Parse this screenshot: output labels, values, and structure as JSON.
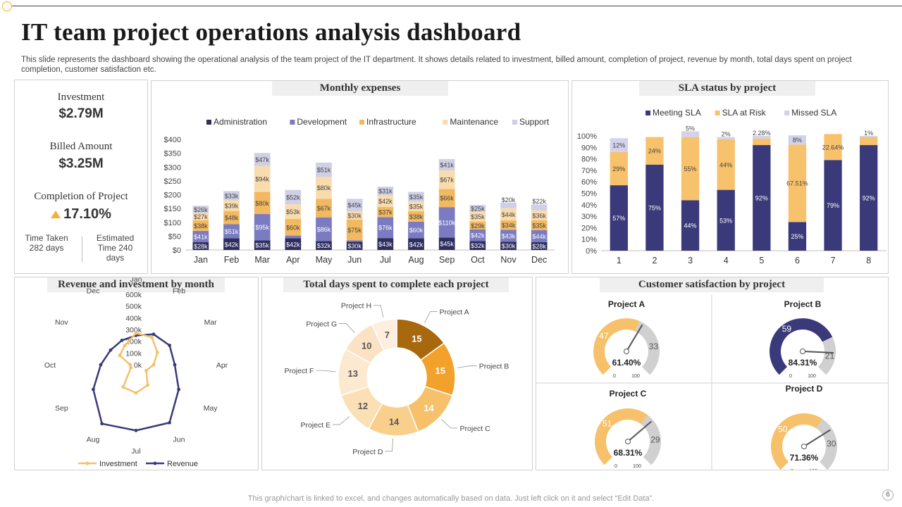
{
  "page": {
    "title": "IT team project operations analysis dashboard",
    "description": "This slide represents the dashboard showing the operational analysis of the team project of the IT department. It shows details related to investment, billed amount, completion of project, revenue by month, total days spent on project completion, customer satisfaction etc.",
    "footer": "This graph/chart is linked to excel,  and changes automatically based on data. Just left click on it and select “Edit Data”.",
    "page_number": "6"
  },
  "kpis": {
    "investment_label": "Investment",
    "investment_value": "$2.79M",
    "billed_label": "Billed  Amount",
    "billed_value": "$3.25M",
    "completion_label": "Completion  of Project",
    "completion_value": "17.10%",
    "time_taken": "Time Taken 282 days",
    "estimated_time": "Estimated Time 240 days",
    "up_color": "#f2b233"
  },
  "chart_data": [
    {
      "id": "monthly-expenses",
      "type": "bar",
      "stacked": true,
      "title": "Monthly expenses",
      "categories": [
        "Jan",
        "Feb",
        "Mar",
        "Apr",
        "May",
        "Jun",
        "Jul",
        "Aug",
        "Sep",
        "Oct",
        "Nov",
        "Dec"
      ],
      "y_ticks": [
        "$0",
        "$50",
        "$100",
        "$150",
        "$200",
        "$250",
        "$300",
        "$350",
        "$400"
      ],
      "ylim": [
        0,
        400
      ],
      "legend_position": "top",
      "series": [
        {
          "name": "Administration",
          "color": "#2e2d5e",
          "values": [
            28,
            42,
            35,
            42,
            32,
            30,
            43,
            42,
            45,
            32,
            30,
            28
          ],
          "labels": [
            "$28k",
            "$42k",
            "$35k",
            "$42k",
            "$32k",
            "$30k",
            "$43k",
            "$42k",
            "$45k",
            "$32k",
            "$30k",
            "$28k"
          ]
        },
        {
          "name": "Development",
          "color": "#7a7bc0",
          "values": [
            41,
            51,
            95,
            10,
            86,
            5,
            76,
            60,
            110,
            42,
            43,
            44
          ],
          "labels": [
            "$41k",
            "$51k",
            "$95k",
            "$10k",
            "$86k",
            "$5k",
            "$76k",
            "$60k",
            "$110k",
            "$42k",
            "$43k",
            "$44k"
          ]
        },
        {
          "name": "Infrastructure",
          "color": "#f2b960",
          "values": [
            38,
            48,
            80,
            60,
            67,
            75,
            37,
            38,
            66,
            29,
            34,
            35
          ],
          "labels": [
            "$38k",
            "$48k",
            "$80k",
            "$60k",
            "$67k",
            "$75k",
            "$37k",
            "$38k",
            "$66k",
            "$29k",
            "$34k",
            "$35k"
          ]
        },
        {
          "name": "Maintenance",
          "color": "#f9dcae",
          "values": [
            27,
            39,
            94,
            53,
            80,
            30,
            42,
            35,
            67,
            35,
            44,
            36
          ],
          "labels": [
            "$27k",
            "$39k",
            "$94k",
            "$53k",
            "$80k",
            "$30k",
            "$42k",
            "$35k",
            "$67k",
            "$35k",
            "$44k",
            "$36k"
          ]
        },
        {
          "name": "Support",
          "color": "#cfcfe6",
          "values": [
            26,
            33,
            47,
            52,
            51,
            45,
            31,
            35,
            41,
            25,
            20,
            22
          ],
          "labels": [
            "$26k",
            "$33k",
            "$47k",
            "$52k",
            "$51k",
            "$45k",
            "$31k",
            "$35k",
            "$41k",
            "$25k",
            "$20k",
            "$22k"
          ]
        }
      ]
    },
    {
      "id": "sla-status",
      "type": "bar",
      "stacked": true,
      "percent": true,
      "title": "SLA status by project",
      "categories": [
        "1",
        "2",
        "3",
        "4",
        "5",
        "6",
        "7",
        "8"
      ],
      "y_ticks": [
        "0%",
        "10%",
        "20%",
        "30%",
        "40%",
        "50%",
        "60%",
        "70%",
        "80%",
        "90%",
        "100%"
      ],
      "ylim": [
        0,
        100
      ],
      "legend_position": "top",
      "series": [
        {
          "name": "Meeting SLA",
          "color": "#3a3a7a",
          "values": [
            57,
            75,
            44,
            53,
            92,
            25,
            79,
            92
          ],
          "labels": [
            "57%",
            "75%",
            "44%",
            "53%",
            "92%",
            "25%",
            "79%",
            "92%"
          ]
        },
        {
          "name": "SLA at Risk",
          "color": "#f7c26b",
          "values": [
            29,
            24,
            55,
            44,
            5.72,
            67.51,
            22.64,
            7
          ],
          "labels": [
            "29%",
            "24%",
            "55%",
            "44%",
            "",
            "67.51%",
            "22.64%",
            ""
          ]
        },
        {
          "name": "Missed SLA",
          "color": "#d2d2ea",
          "values": [
            12,
            0,
            5,
            2,
            2.28,
            8,
            0,
            1
          ],
          "labels": [
            "12%",
            "",
            "5%",
            "2%",
            "2.28%",
            "8%",
            "",
            "1%"
          ]
        }
      ]
    },
    {
      "id": "revenue-investment",
      "type": "radar",
      "title": "Revenue and investment by month",
      "categories": [
        "Jan",
        "Feb",
        "Mar",
        "Apr",
        "May",
        "Jun",
        "Jul",
        "Aug",
        "Sep",
        "Oct",
        "Nov",
        "Dec"
      ],
      "r_ticks": [
        "0k",
        "100k",
        "200k",
        "300k",
        "400k",
        "500k",
        "600k"
      ],
      "rlim": [
        0,
        600000
      ],
      "legend_position": "bottom",
      "series": [
        {
          "name": "Investment",
          "color": "#f2c26b",
          "values": [
            270000,
            270000,
            210000,
            150000,
            100000,
            200000,
            240000,
            220000,
            50000,
            50000,
            160000,
            190000
          ]
        },
        {
          "name": "Revenue",
          "color": "#3a3a7a",
          "values": [
            250000,
            300000,
            330000,
            330000,
            420000,
            570000,
            560000,
            580000,
            420000,
            300000,
            250000,
            240000
          ]
        }
      ]
    },
    {
      "id": "days-per-project",
      "type": "pie",
      "donut": true,
      "title": "Total days spent to complete each project",
      "labels": [
        "Project A",
        "Project B",
        "Project C",
        "Project D",
        "Project E",
        "Project F",
        "Project G",
        "Project H"
      ],
      "values": [
        15,
        15,
        14,
        14,
        12,
        13,
        10,
        7
      ],
      "colors": [
        "#a8680e",
        "#f2a22a",
        "#f7c06b",
        "#f9cf8c",
        "#fbdfb5",
        "#fde9cf",
        "#fce2c4",
        "#fdeede"
      ]
    },
    {
      "id": "customer-satisfaction",
      "type": "gauge",
      "title": "Customer satisfaction by project",
      "range_labels": [
        "0",
        "100"
      ],
      "gauges": [
        {
          "name": "Project A",
          "value": 47,
          "remaining": 33,
          "percent_label": "61.40%",
          "pointer": 61.4,
          "color": "#f7c06b",
          "rest_color": "#d0d0d0"
        },
        {
          "name": "Project B",
          "value": 59,
          "remaining": 21,
          "percent_label": "84.31%",
          "pointer": 84.31,
          "color": "#3a3a7a",
          "rest_color": "#d0d0d0"
        },
        {
          "name": "Project C",
          "value": 51,
          "remaining": 29,
          "percent_label": "68.31%",
          "pointer": 68.31,
          "color": "#f7c06b",
          "rest_color": "#d0d0d0"
        },
        {
          "name": "Project D",
          "value": 50,
          "remaining": 30,
          "percent_label": "71.36%",
          "pointer": 71.36,
          "color": "#f7c06b",
          "rest_color": "#d0d0d0"
        }
      ]
    }
  ]
}
